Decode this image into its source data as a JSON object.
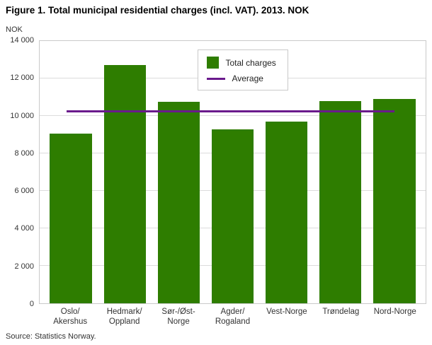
{
  "chart_data": {
    "type": "bar",
    "title": "Figure 1. Total municipal residential charges (incl. VAT). 2013. NOK",
    "y_unit_label": "NOK",
    "source": "Source: Statistics Norway.",
    "ylim": [
      0,
      14000
    ],
    "grid": true,
    "legend_position": "top-center-inside",
    "categories": [
      {
        "label": "Oslo/Akershus",
        "lines": [
          "Oslo/",
          "Akershus"
        ]
      },
      {
        "label": "Hedmark/Oppland",
        "lines": [
          "Hedmark/",
          "Oppland"
        ]
      },
      {
        "label": "Sør-/Øst-Norge",
        "lines": [
          "Sør-/Øst-",
          "Norge"
        ]
      },
      {
        "label": "Agder/Rogaland",
        "lines": [
          "Agder/",
          "Rogaland"
        ]
      },
      {
        "label": "Vest-Norge",
        "lines": [
          "Vest-Norge"
        ]
      },
      {
        "label": "Trøndelag",
        "lines": [
          "Trøndelag"
        ]
      },
      {
        "label": "Nord-Norge",
        "lines": [
          "Nord-Norge"
        ]
      }
    ],
    "series": [
      {
        "name": "Total charges",
        "values": [
          9050,
          12700,
          10750,
          9300,
          9700,
          10800,
          10900
        ]
      }
    ],
    "values": [
      9050,
      12700,
      10750,
      9300,
      9700,
      10800,
      10900
    ],
    "average": 10250,
    "yticks": [
      {
        "value": 0,
        "label": "0"
      },
      {
        "value": 2000,
        "label": "2 000"
      },
      {
        "value": 4000,
        "label": "4 000"
      },
      {
        "value": 6000,
        "label": "6 000"
      },
      {
        "value": 8000,
        "label": "8 000"
      },
      {
        "value": 10000,
        "label": "10 000"
      },
      {
        "value": 12000,
        "label": "12 000"
      },
      {
        "value": 14000,
        "label": "14 000"
      }
    ],
    "legend": [
      {
        "label": "Total charges",
        "swatch": "box"
      },
      {
        "label": "Average",
        "swatch": "line"
      }
    ],
    "colors": {
      "bar": "#2e7d00",
      "average": "#6a1a8c",
      "gridline": "#dcdcdc",
      "plot_border": "#c9c9c9"
    }
  }
}
